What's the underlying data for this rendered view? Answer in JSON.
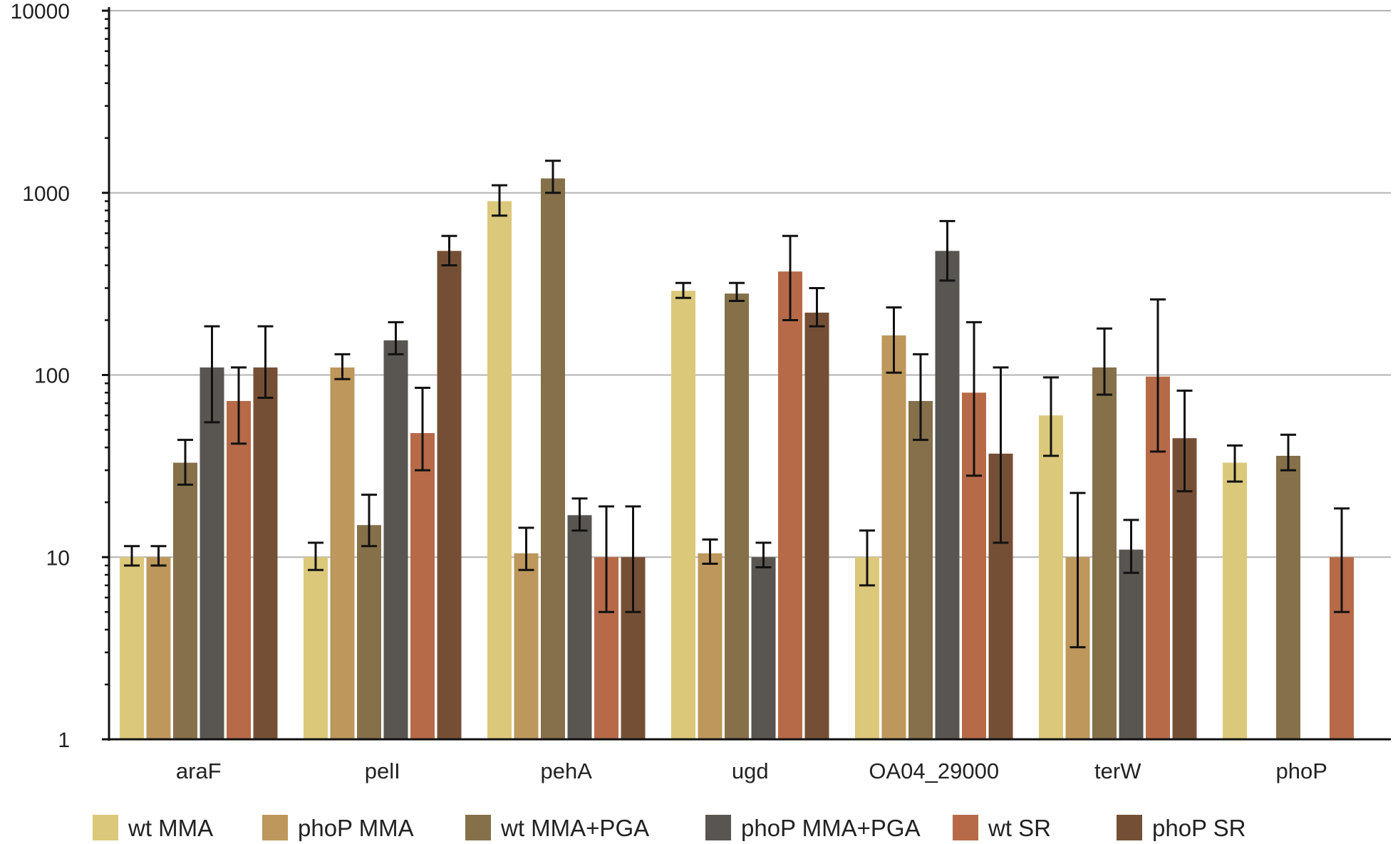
{
  "chart_data": {
    "type": "bar",
    "scale": "log",
    "ylim": [
      1,
      10000
    ],
    "yticks": [
      1,
      10,
      100,
      1000,
      10000
    ],
    "ytick_labels": [
      "1",
      "10",
      "100",
      "1000",
      "10000"
    ],
    "grid": true,
    "legend_position": "bottom",
    "categories": [
      "araF",
      "pelI",
      "pehA",
      "ugd",
      "OA04_29000",
      "terW",
      "phoP"
    ],
    "series": [
      {
        "name": "wt MMA",
        "color": "#dcc87a",
        "values": [
          10,
          10,
          900,
          290,
          10,
          60,
          33
        ],
        "err_low": [
          9,
          8.5,
          750,
          265,
          7,
          36,
          26
        ],
        "err_high": [
          11.5,
          12,
          1100,
          320,
          14,
          97,
          41
        ]
      },
      {
        "name": "phoP MMA",
        "color": "#bd975b",
        "values": [
          10,
          110,
          10.5,
          10.5,
          165,
          10,
          null
        ],
        "err_low": [
          9,
          95,
          8.5,
          9.2,
          103,
          3.2,
          null
        ],
        "err_high": [
          11.5,
          130,
          14.5,
          12.5,
          235,
          22.5,
          null
        ]
      },
      {
        "name": "wt MMA+PGA",
        "color": "#85704a",
        "values": [
          33,
          15,
          1200,
          280,
          72,
          110,
          36
        ],
        "err_low": [
          25,
          11.5,
          1000,
          255,
          44,
          78,
          30
        ],
        "err_high": [
          44,
          22,
          1500,
          320,
          130,
          180,
          47
        ]
      },
      {
        "name": "phoP MMA+PGA",
        "color": "#595550",
        "values": [
          110,
          155,
          17,
          10,
          480,
          11,
          null
        ],
        "err_low": [
          55,
          130,
          14,
          8.8,
          330,
          8.2,
          null
        ],
        "err_high": [
          185,
          195,
          21,
          12,
          700,
          16,
          null
        ]
      },
      {
        "name": "wt SR",
        "color": "#b76a48",
        "values": [
          72,
          48,
          10,
          370,
          80,
          98,
          10
        ],
        "err_low": [
          42,
          30,
          5,
          200,
          28,
          38,
          5
        ],
        "err_high": [
          110,
          85,
          19,
          580,
          195,
          260,
          18.5
        ]
      },
      {
        "name": "phoP SR",
        "color": "#754f35",
        "values": [
          110,
          480,
          10,
          220,
          37,
          45,
          null
        ],
        "err_low": [
          75,
          400,
          5,
          185,
          12,
          23,
          null
        ],
        "err_high": [
          185,
          580,
          19,
          300,
          110,
          82,
          null
        ]
      }
    ]
  }
}
